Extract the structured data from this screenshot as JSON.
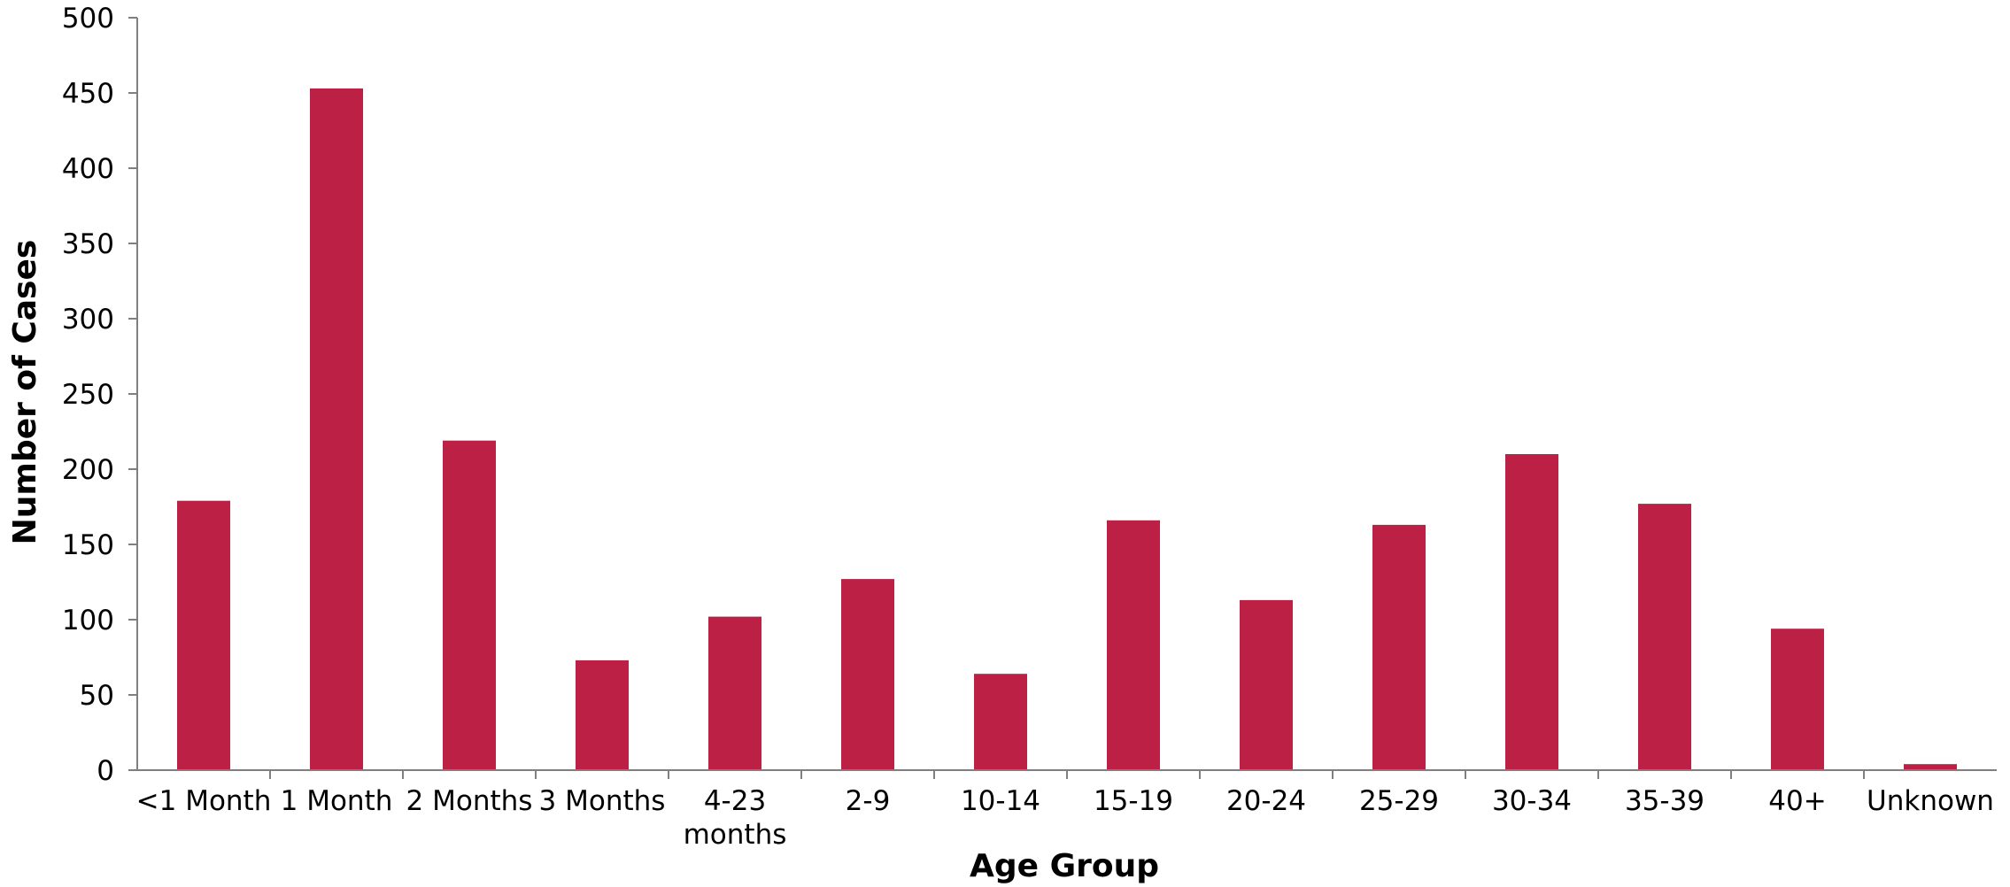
{
  "chart_data": {
    "type": "bar",
    "title": "",
    "xlabel": "Age Group",
    "ylabel": "Number of Cases",
    "categories": [
      [
        "<1 Month"
      ],
      [
        "1 Month"
      ],
      [
        "2 Months"
      ],
      [
        "3 Months"
      ],
      [
        "4-23",
        "months"
      ],
      [
        "2-9"
      ],
      [
        "10-14"
      ],
      [
        "15-19"
      ],
      [
        "20-24"
      ],
      [
        "25-29"
      ],
      [
        "30-34"
      ],
      [
        "35-39"
      ],
      [
        "40+"
      ],
      [
        "Unknown"
      ]
    ],
    "values": [
      179,
      453,
      219,
      73,
      102,
      127,
      64,
      166,
      113,
      163,
      210,
      177,
      94,
      4
    ],
    "ylim": [
      0,
      500
    ],
    "yticks": [
      0,
      50,
      100,
      150,
      200,
      250,
      300,
      350,
      400,
      450,
      500
    ],
    "grid": false,
    "legend": "none",
    "bar_color": "#bc2045",
    "axis_color": "#7f7f7f"
  }
}
